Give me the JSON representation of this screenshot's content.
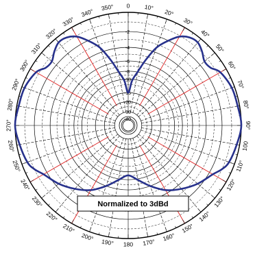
{
  "chart_data": {
    "type": "polar",
    "title": "",
    "annotation": "Normalized to 3dBd",
    "angle_unit": "degrees",
    "angle_labels": [
      "0",
      "10°",
      "20°",
      "30°",
      "40°",
      "50°",
      "60°",
      "70°",
      "80°",
      "90°",
      "100",
      "110°",
      "120°",
      "130°",
      "140°",
      "150°",
      "160°",
      "170°",
      "180",
      "190°",
      "200°",
      "210°",
      "220°",
      "230°",
      "240°",
      "250°",
      "260°",
      "270°",
      "280°",
      "290°",
      "300°",
      "310°",
      "320°",
      "330°",
      "340°",
      "350°"
    ],
    "radial_labels": [
      "-2",
      "-4",
      "-6",
      "-8",
      "-10",
      "-15",
      "-20",
      "-30",
      "-40"
    ],
    "radial_unit": "dB",
    "series": [
      {
        "color": "#27318c",
        "theta": [
          0,
          5,
          10,
          15,
          20,
          25,
          30,
          35,
          40,
          45,
          50,
          55,
          60,
          70,
          80,
          90,
          100,
          110,
          115,
          120,
          130,
          140,
          150,
          160,
          170,
          180,
          190,
          200,
          210,
          220,
          230,
          240,
          245,
          250,
          260,
          270,
          280,
          290,
          300,
          305,
          310,
          315,
          320,
          325,
          330,
          335,
          340,
          345,
          350,
          355,
          360
        ],
        "r_db": [
          -15,
          -10.5,
          -8,
          -5.5,
          -3.4,
          -2.1,
          -1.1,
          -0.6,
          -0.5,
          -0.9,
          -1.4,
          -1.3,
          -0.7,
          -0.3,
          -0.2,
          0,
          -0.3,
          -0.6,
          -1,
          -1.6,
          -2.4,
          -3.4,
          -4.5,
          -6,
          -7.8,
          -9.1,
          -7.8,
          -6,
          -4.5,
          -3.4,
          -2.4,
          -1.6,
          -1,
          -0.6,
          -0.3,
          0,
          -0.2,
          -0.3,
          -0.7,
          -1.3,
          -1.4,
          -0.9,
          -0.5,
          -0.6,
          -1.1,
          -2.1,
          -3.4,
          -5.5,
          -8,
          -10.5,
          -15
        ]
      }
    ]
  },
  "colors": {
    "pattern": "#27318c",
    "grid": "#000000",
    "accent_grid": "#e02020",
    "legend_border": "#000000"
  }
}
